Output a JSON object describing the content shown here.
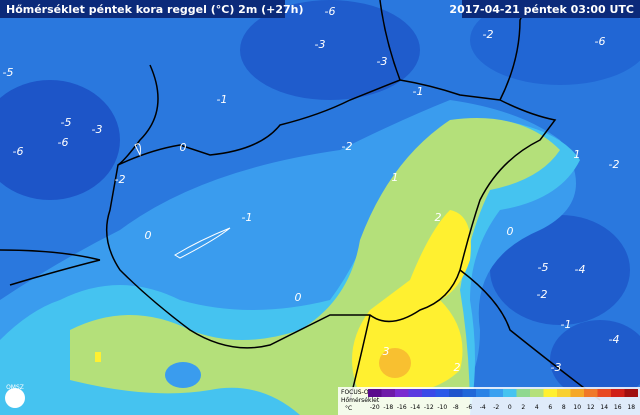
{
  "header": {
    "title": "Hőmérséklet péntek kora reggel (°C) 2m (+27h)",
    "timestamp": "2017-04-21 péntek 03:00 UTC"
  },
  "logo": "OMSZ",
  "legend": {
    "title": "FOCUS-OFF",
    "subtitle": "Hőmérséklet",
    "unit": "°C",
    "ticks": [
      -20,
      -18,
      -16,
      -14,
      -12,
      -10,
      -8,
      -6,
      -4,
      -2,
      0,
      2,
      4,
      6,
      8,
      10,
      12,
      14,
      16,
      18
    ],
    "colors": [
      "#5a0a8c",
      "#6e1aa8",
      "#7a2ad0",
      "#5a3ae0",
      "#3a4ae8",
      "#2a5ae8",
      "#1f55cc",
      "#2168d8",
      "#2a82e6",
      "#3aa0f0",
      "#45c3f0",
      "#8fd890",
      "#b4e07a",
      "#fff030",
      "#f8d030",
      "#f5a828",
      "#f07828",
      "#e84820",
      "#d02018",
      "#a01010"
    ]
  },
  "contour_labels": [
    "-6",
    "-5",
    "-6",
    "-5",
    "-6",
    "-3",
    "-2",
    "0",
    "0",
    "-1",
    "-1",
    "-2",
    "0",
    "1",
    "2",
    "3",
    "2",
    "-1",
    "-3",
    "-6",
    "-5",
    "-4",
    "-2",
    "-1",
    "-3",
    "-4",
    "-2",
    "0",
    "1",
    "-2",
    "-3"
  ]
}
